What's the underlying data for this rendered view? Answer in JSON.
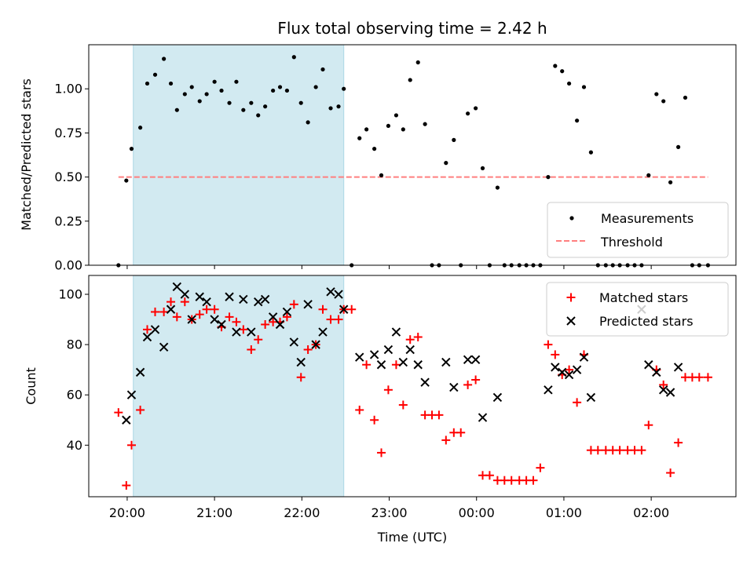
{
  "chart_data": {
    "title": "Flux total observing time = 2.42 h",
    "x_axis": {
      "label": "Time (UTC)",
      "tick_labels": [
        "20:00",
        "21:00",
        "22:00",
        "23:00",
        "00:00",
        "01:00",
        "02:00"
      ],
      "ticks_hours": [
        20,
        21,
        22,
        23,
        24,
        25,
        26
      ],
      "range_hours": [
        19.56,
        26.97
      ]
    },
    "highlight_span_hours": [
      20.07,
      22.48
    ],
    "panels": [
      {
        "type": "scatter",
        "ylabel": "Matched/Predicted stars",
        "ylim": [
          0,
          1.25
        ],
        "yticks": [
          "0.00",
          "0.25",
          "0.50",
          "0.75",
          "1.00"
        ],
        "legend": [
          "Measurements",
          "Threshold"
        ],
        "legend_position": "lower right",
        "threshold": 0.5,
        "threshold_range_hours": [
          19.9,
          26.65
        ],
        "x": [
          19.9,
          19.99,
          20.05,
          20.15,
          20.23,
          20.32,
          20.42,
          20.5,
          20.57,
          20.66,
          20.74,
          20.83,
          20.91,
          21.0,
          21.08,
          21.17,
          21.25,
          21.33,
          21.42,
          21.5,
          21.58,
          21.67,
          21.75,
          21.83,
          21.91,
          21.99,
          22.07,
          22.16,
          22.24,
          22.33,
          22.42,
          22.48,
          22.57,
          22.66,
          22.74,
          22.83,
          22.91,
          22.99,
          23.08,
          23.16,
          23.24,
          23.33,
          23.41,
          23.49,
          23.57,
          23.65,
          23.74,
          23.82,
          23.9,
          23.99,
          24.07,
          24.15,
          24.24,
          24.32,
          24.4,
          24.49,
          24.57,
          24.65,
          24.73,
          24.82,
          24.9,
          24.98,
          25.06,
          25.15,
          25.23,
          25.31,
          25.39,
          25.48,
          25.56,
          25.64,
          25.73,
          25.81,
          25.89,
          25.97,
          26.06,
          26.14,
          26.22,
          26.31,
          26.39,
          26.47,
          26.55,
          26.65
        ],
        "y": [
          0.0,
          0.48,
          0.66,
          0.78,
          1.03,
          1.08,
          1.17,
          1.03,
          0.88,
          0.97,
          1.01,
          0.93,
          0.97,
          1.04,
          0.99,
          0.92,
          1.04,
          0.88,
          0.92,
          0.85,
          0.9,
          0.99,
          1.01,
          0.99,
          1.18,
          0.92,
          0.81,
          1.01,
          1.11,
          0.89,
          0.9,
          1.0,
          0.0,
          0.72,
          0.77,
          0.66,
          0.51,
          0.79,
          0.85,
          0.77,
          1.05,
          1.15,
          0.8,
          0.0,
          0.0,
          0.58,
          0.71,
          0.0,
          0.86,
          0.89,
          0.55,
          0.0,
          0.44,
          0.0,
          0.0,
          0.0,
          0.0,
          0.0,
          0.0,
          0.5,
          1.13,
          1.1,
          1.03,
          0.82,
          1.01,
          0.64,
          0.0,
          0.0,
          0.0,
          0.0,
          0.0,
          0.0,
          0.0,
          0.51,
          0.97,
          0.93,
          0.47,
          0.67,
          0.95,
          0.0,
          0.0,
          0.0
        ],
        "threshold_color": "#ff7f7f",
        "point_color": "#000000"
      },
      {
        "type": "scatter",
        "ylabel": "Count",
        "ylim": [
          19.5,
          107.5
        ],
        "yticks": [
          "40",
          "60",
          "80",
          "100"
        ],
        "legend_position": "upper right",
        "series": [
          {
            "name": "Matched stars",
            "marker": "+",
            "color": "#ff0000",
            "x": [
              19.9,
              19.99,
              20.05,
              20.15,
              20.23,
              20.32,
              20.42,
              20.5,
              20.57,
              20.66,
              20.74,
              20.83,
              20.91,
              21.0,
              21.08,
              21.17,
              21.25,
              21.33,
              21.42,
              21.5,
              21.58,
              21.67,
              21.75,
              21.83,
              21.91,
              21.99,
              22.07,
              22.16,
              22.24,
              22.33,
              22.42,
              22.48,
              22.57,
              22.66,
              22.74,
              22.83,
              22.91,
              22.99,
              23.08,
              23.16,
              23.24,
              23.33,
              23.41,
              23.49,
              23.57,
              23.65,
              23.74,
              23.82,
              23.9,
              23.99,
              24.07,
              24.15,
              24.24,
              24.32,
              24.4,
              24.49,
              24.57,
              24.65,
              24.73,
              24.82,
              24.9,
              24.98,
              25.06,
              25.15,
              25.23,
              25.31,
              25.39,
              25.48,
              25.56,
              25.64,
              25.73,
              25.81,
              25.89,
              25.97,
              26.06,
              26.14,
              26.22,
              26.31,
              26.39,
              26.47,
              26.55,
              26.65
            ],
            "values": [
              53,
              24,
              40,
              54,
              86,
              93,
              93,
              97,
              91,
              97,
              90,
              92,
              94,
              94,
              87,
              91,
              89,
              86,
              78,
              82,
              88,
              89,
              89,
              91,
              96,
              67,
              78,
              80,
              94,
              90,
              90,
              94,
              94,
              54,
              72,
              50,
              37,
              62,
              72,
              56,
              82,
              83,
              52,
              52,
              52,
              42,
              45,
              45,
              64,
              66,
              28,
              28,
              26,
              26,
              26,
              26,
              26,
              26,
              31,
              80,
              76,
              68,
              70,
              57,
              76,
              38,
              38,
              38,
              38,
              38,
              38,
              38,
              38,
              48,
              70,
              64,
              29,
              41,
              67,
              67,
              67,
              67
            ]
          },
          {
            "name": "Predicted stars",
            "marker": "x",
            "color": "#000000",
            "x": [
              19.99,
              20.05,
              20.15,
              20.23,
              20.32,
              20.42,
              20.5,
              20.57,
              20.66,
              20.74,
              20.83,
              20.91,
              21.0,
              21.08,
              21.17,
              21.25,
              21.33,
              21.42,
              21.5,
              21.58,
              21.67,
              21.75,
              21.83,
              21.91,
              21.99,
              22.07,
              22.16,
              22.24,
              22.33,
              22.42,
              22.48,
              22.66,
              22.83,
              22.91,
              22.99,
              23.08,
              23.16,
              23.24,
              23.33,
              23.41,
              23.65,
              23.74,
              23.9,
              23.99,
              24.07,
              24.24,
              24.82,
              24.9,
              24.98,
              25.06,
              25.15,
              25.23,
              25.31,
              25.89,
              25.97,
              26.06,
              26.14,
              26.22,
              26.31
            ],
            "values": [
              50,
              60,
              69,
              83,
              86,
              79,
              94,
              103,
              100,
              90,
              99,
              97,
              90,
              88,
              99,
              85,
              98,
              85,
              97,
              98,
              91,
              88,
              93,
              81,
              73,
              96,
              80,
              85,
              101,
              100,
              94,
              75,
              76,
              72,
              78,
              85,
              73,
              78,
              72,
              65,
              73,
              63,
              74,
              74,
              51,
              59,
              62,
              71,
              69,
              68,
              70,
              75,
              59,
              94,
              72,
              69,
              62,
              61,
              71
            ]
          }
        ]
      }
    ],
    "highlight_color": "#add8e6"
  }
}
